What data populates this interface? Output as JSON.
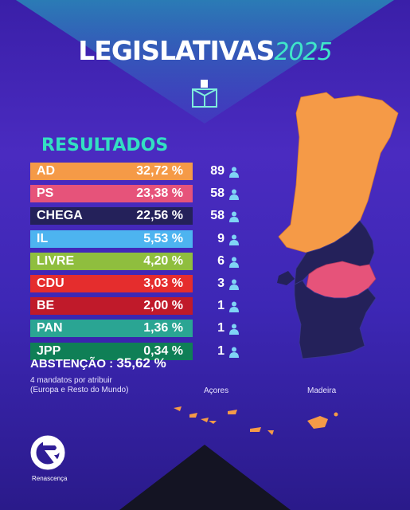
{
  "header": {
    "title": "LEGISLATIVAS",
    "year": "2025"
  },
  "results_title": "RESULTADOS",
  "rows": [
    {
      "party": "AD",
      "pct": "32,72 %",
      "seats": "89",
      "color": "#f59a47"
    },
    {
      "party": "PS",
      "pct": "23,38 %",
      "seats": "58",
      "color": "#e6537a"
    },
    {
      "party": "CHEGA",
      "pct": "22,56 %",
      "seats": "58",
      "color": "#24215a"
    },
    {
      "party": "IL",
      "pct": "5,53 %",
      "seats": "9",
      "color": "#4db4f0"
    },
    {
      "party": "LIVRE",
      "pct": "4,20 %",
      "seats": "6",
      "color": "#8fbe3e"
    },
    {
      "party": "CDU",
      "pct": "3,03 %",
      "seats": "3",
      "color": "#e52d2d"
    },
    {
      "party": "BE",
      "pct": "2,00 %",
      "seats": "1",
      "color": "#c01a2a"
    },
    {
      "party": "PAN",
      "pct": "1,36 %",
      "seats": "1",
      "color": "#2aa593"
    },
    {
      "party": "JPP",
      "pct": "0,34 %",
      "seats": "1",
      "color": "#0f7f56"
    }
  ],
  "abstention": {
    "label": "ABSTENÇÃO :",
    "value": "35,62 %"
  },
  "note": {
    "line1": "4 mandatos por atribuir",
    "line2": "(Europa e Resto do Mundo)"
  },
  "map_labels": {
    "acores": "Açores",
    "madeira": "Madeira"
  },
  "logo": {
    "text": "Renascença"
  },
  "icons": {
    "ballot": "ballot-box-icon",
    "person": "person-icon"
  },
  "colors": {
    "accent": "#33e0c2",
    "map_orange": "#f59a47",
    "map_navy": "#24215a",
    "map_pink": "#e6537a"
  }
}
